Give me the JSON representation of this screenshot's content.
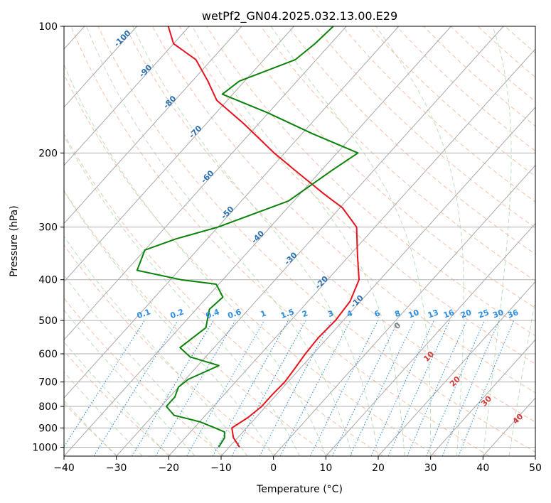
{
  "chart_data": {
    "type": "line",
    "title": "wetPf2_GN04.2025.032.13.00.E29",
    "xlabel": "Temperature (°C)",
    "ylabel": "Pressure (hPa)",
    "xlim": [
      -40,
      50
    ],
    "ylim": [
      1050,
      100
    ],
    "y_scale": "log",
    "x_ticks": [
      "−40",
      "−30",
      "−20",
      "−10",
      "0",
      "10",
      "20",
      "30",
      "40",
      "50"
    ],
    "x_tick_values": [
      -40,
      -30,
      -20,
      -10,
      0,
      10,
      20,
      30,
      40,
      50
    ],
    "y_ticks": [
      "100",
      "200",
      "300",
      "400",
      "500",
      "600",
      "700",
      "800",
      "900",
      "1000"
    ],
    "y_tick_values": [
      100,
      200,
      300,
      400,
      500,
      600,
      700,
      800,
      900,
      1000
    ],
    "grid": true,
    "series": [
      {
        "color": "#e8121d",
        "points": [
          [
            -8.0,
            1000
          ],
          [
            -10.8,
            950
          ],
          [
            -12.8,
            900
          ],
          [
            -11.5,
            850
          ],
          [
            -10.8,
            800
          ],
          [
            -10.8,
            750
          ],
          [
            -10.6,
            700
          ],
          [
            -11.0,
            650
          ],
          [
            -11.5,
            600
          ],
          [
            -11.8,
            550
          ],
          [
            -11.5,
            500
          ],
          [
            -12.0,
            450
          ],
          [
            -14.0,
            400
          ],
          [
            -18.5,
            350
          ],
          [
            -23.5,
            300
          ],
          [
            -29.5,
            270
          ],
          [
            -35.5,
            250
          ],
          [
            -45.0,
            220
          ],
          [
            -52.0,
            200
          ],
          [
            -63.0,
            170
          ],
          [
            -72.0,
            150
          ],
          [
            -77.0,
            135
          ],
          [
            -83.0,
            120
          ],
          [
            -90.0,
            110
          ],
          [
            -94.0,
            100
          ]
        ]
      },
      {
        "color": "#0a830a",
        "points": [
          [
            -12.0,
            1000
          ],
          [
            -12.5,
            950
          ],
          [
            -13.5,
            920
          ],
          [
            -16.0,
            900
          ],
          [
            -20.0,
            870
          ],
          [
            -26.0,
            840
          ],
          [
            -29.0,
            800
          ],
          [
            -29.0,
            760
          ],
          [
            -30.0,
            720
          ],
          [
            -29.5,
            690
          ],
          [
            -26.0,
            640
          ],
          [
            -33.0,
            610
          ],
          [
            -36.5,
            580
          ],
          [
            -35.0,
            520
          ],
          [
            -37.5,
            470
          ],
          [
            -37.0,
            440
          ],
          [
            -40.5,
            410
          ],
          [
            -48.0,
            400
          ],
          [
            -58.0,
            380
          ],
          [
            -60.0,
            340
          ],
          [
            -56.0,
            320
          ],
          [
            -50.0,
            300
          ],
          [
            -41.0,
            260
          ],
          [
            -38.0,
            220
          ],
          [
            -36.0,
            200
          ],
          [
            -48.0,
            180
          ],
          [
            -60.5,
            160
          ],
          [
            -72.0,
            145
          ],
          [
            -71.0,
            135
          ],
          [
            -64.0,
            120
          ],
          [
            -63.0,
            110
          ],
          [
            -62.5,
            100
          ]
        ]
      }
    ],
    "dry_adiabat_labels": [
      "-100",
      "-90",
      "-80",
      "-70",
      "-60",
      "-50",
      "-40",
      "-30",
      "-20",
      "-10"
    ],
    "dry_adiabat_positions": [
      [
        -100,
        108
      ],
      [
        -90,
        129
      ],
      [
        -80,
        153
      ],
      [
        -70,
        180
      ],
      [
        -60,
        230
      ],
      [
        -50,
        280
      ],
      [
        -40,
        320
      ],
      [
        -30,
        360
      ],
      [
        -20,
        410
      ],
      [
        -10,
        455
      ]
    ],
    "mixing_ratio_labels": [
      "0.1",
      "0.2",
      "0.4",
      "0.6",
      "1",
      "1.5",
      "2",
      "3",
      "4",
      "6",
      "8",
      "10",
      "13",
      "16",
      "20",
      "25",
      "30",
      "36"
    ],
    "mixing_ratio_values": [
      0.1,
      0.2,
      0.4,
      0.6,
      1,
      1.5,
      2,
      3,
      4,
      6,
      8,
      10,
      13,
      16,
      20,
      25,
      30,
      36
    ],
    "moist_adiabat_labels": [
      "0",
      "10",
      "20",
      "30",
      "40"
    ],
    "moist_adiabat_positions": [
      [
        24,
        520
      ],
      [
        30,
        615
      ],
      [
        35,
        705
      ],
      [
        41,
        785
      ],
      [
        47,
        865
      ]
    ]
  }
}
